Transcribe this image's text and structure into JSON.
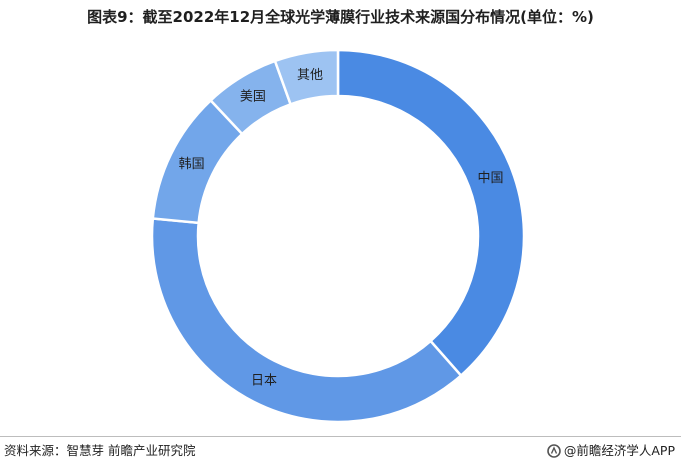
{
  "title": "图表9：截至2022年12月全球光学薄膜行业技术来源国分布情况(单位：%)",
  "source_text": "资料来源：智慧芽 前瞻产业研究院",
  "brand_text": "@前瞻经济学人APP",
  "chart_data": {
    "type": "pie",
    "variant": "donut",
    "title": "图表9：截至2022年12月全球光学薄膜行业技术来源国分布情况(单位：%)",
    "unit": "%",
    "categories": [
      "中国",
      "日本",
      "韩国",
      "美国",
      "其他"
    ],
    "values": [
      38.5,
      38.0,
      11.5,
      6.5,
      5.5
    ],
    "colors": [
      "#4a8ae3",
      "#6098e6",
      "#72a6ea",
      "#85b3ed",
      "#9dc3f2"
    ],
    "start": "12 o'clock",
    "direction": "clockwise",
    "data_labels": true
  }
}
